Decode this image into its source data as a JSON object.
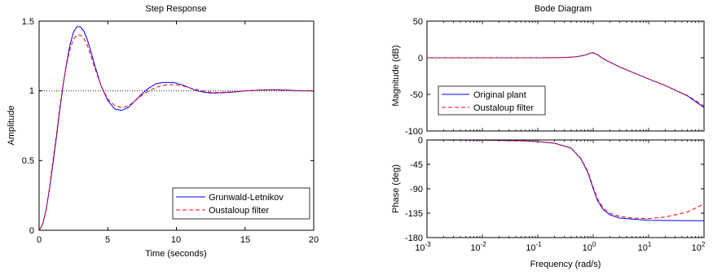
{
  "chart_data": [
    {
      "type": "line",
      "title": "Step Response",
      "xlabel": "Time (seconds)",
      "ylabel": "Amplitude",
      "xlim": [
        0,
        20
      ],
      "ylim": [
        0,
        1.5
      ],
      "xticks": [
        "0",
        "5",
        "10",
        "15",
        "20"
      ],
      "yticks": [
        "0",
        "0.5",
        "1",
        "1.5"
      ],
      "legend_position": "bottom-right",
      "reference_line": {
        "y": 1,
        "style": "dotted",
        "color": "#000000"
      },
      "series": [
        {
          "name": "Grunwald-Letnikov",
          "color": "#0000ff",
          "style": "solid",
          "x": [
            0,
            0.25,
            0.5,
            0.75,
            1,
            1.25,
            1.5,
            1.75,
            2,
            2.25,
            2.5,
            2.75,
            3,
            3.25,
            3.5,
            3.75,
            4,
            4.5,
            5,
            5.5,
            6,
            6.25,
            6.5,
            7,
            7.5,
            8,
            8.5,
            9,
            9.5,
            9.75,
            10,
            10.5,
            11,
            11.5,
            12,
            12.5,
            13,
            14,
            15,
            16,
            17,
            18,
            19,
            20
          ],
          "y": [
            0,
            0.04,
            0.14,
            0.29,
            0.47,
            0.66,
            0.86,
            1.04,
            1.2,
            1.33,
            1.42,
            1.46,
            1.46,
            1.43,
            1.37,
            1.29,
            1.2,
            1.04,
            0.93,
            0.87,
            0.86,
            0.87,
            0.88,
            0.93,
            0.98,
            1.02,
            1.05,
            1.06,
            1.06,
            1.06,
            1.055,
            1.04,
            1.02,
            1.0,
            0.99,
            0.985,
            0.985,
            0.99,
            1.0,
            1.005,
            1.008,
            1.005,
            1.001,
            1.0
          ]
        },
        {
          "name": "Oustaloup filter",
          "color": "#ff0000",
          "style": "dashed",
          "x": [
            0,
            0.25,
            0.5,
            0.75,
            1,
            1.25,
            1.5,
            1.75,
            2,
            2.25,
            2.5,
            2.75,
            3,
            3.25,
            3.5,
            3.75,
            4,
            4.5,
            5,
            5.5,
            6,
            6.5,
            7,
            7.5,
            8,
            8.5,
            9,
            9.5,
            10,
            10.5,
            11,
            11.5,
            12,
            12.5,
            13,
            14,
            15,
            16,
            17,
            18,
            19,
            20
          ],
          "y": [
            0,
            0.04,
            0.14,
            0.3,
            0.49,
            0.68,
            0.88,
            1.05,
            1.19,
            1.3,
            1.37,
            1.4,
            1.4,
            1.38,
            1.33,
            1.26,
            1.18,
            1.04,
            0.94,
            0.895,
            0.88,
            0.89,
            0.93,
            0.97,
            1.0,
            1.025,
            1.04,
            1.045,
            1.043,
            1.035,
            1.02,
            1.008,
            0.998,
            0.99,
            0.988,
            0.993,
            1.0,
            1.005,
            1.006,
            1.003,
            1.0,
            1.0
          ]
        }
      ]
    },
    {
      "type": "line",
      "title": "Bode Diagram",
      "xlabel": "Frequency  (rad/s)",
      "xscale": "log",
      "xlim": [
        0.001,
        100
      ],
      "xtick_bases": [
        "10",
        "10",
        "10",
        "10",
        "10",
        "10"
      ],
      "xtick_exponents": [
        "-3",
        "-2",
        "-1",
        "0",
        "1",
        "2"
      ],
      "legend_position": "bottom-left of magnitude panel",
      "panels": [
        {
          "name": "magnitude",
          "ylabel": "Magnitude (dB)",
          "ylim": [
            -100,
            50
          ],
          "yticks": [
            "50",
            "0",
            "-50",
            "-100"
          ],
          "series": [
            {
              "name": "Original plant",
              "color": "#0000ff",
              "style": "solid",
              "x": [
                0.001,
                0.01,
                0.1,
                0.3,
                0.5,
                0.7,
                0.9,
                1.0,
                1.2,
                1.5,
                2,
                3,
                5,
                10,
                20,
                50,
                100
              ],
              "y": [
                0,
                0,
                0,
                0.3,
                1.5,
                3.5,
                6.5,
                7,
                4,
                -1,
                -6,
                -12.5,
                -19.5,
                -29,
                -38,
                -52,
                -68
              ]
            },
            {
              "name": "Oustaloup filter",
              "color": "#ff0000",
              "style": "dashed",
              "x": [
                0.001,
                0.01,
                0.1,
                0.3,
                0.5,
                0.7,
                0.9,
                1.0,
                1.2,
                1.5,
                2,
                3,
                5,
                10,
                20,
                50,
                100
              ],
              "y": [
                0,
                0,
                0,
                0.3,
                1.5,
                3.5,
                6.3,
                6.7,
                4,
                -1,
                -6,
                -12.5,
                -19.5,
                -29,
                -38,
                -51.5,
                -66
              ]
            }
          ]
        },
        {
          "name": "phase",
          "ylabel": "Phase (deg)",
          "ylim": [
            -180,
            0
          ],
          "yticks": [
            "0",
            "-45",
            "-90",
            "-135",
            "-180"
          ],
          "series": [
            {
              "name": "Original plant",
              "color": "#0000ff",
              "style": "solid",
              "x": [
                0.001,
                0.01,
                0.05,
                0.1,
                0.2,
                0.4,
                0.6,
                0.8,
                1.0,
                1.2,
                1.5,
                2,
                3,
                5,
                10,
                20,
                50,
                100
              ],
              "y": [
                0,
                -0.5,
                -1.5,
                -3,
                -6,
                -15,
                -35,
                -60,
                -90,
                -112,
                -128,
                -138,
                -144,
                -146,
                -148,
                -148.5,
                -149,
                -149
              ]
            },
            {
              "name": "Oustaloup filter",
              "color": "#ff0000",
              "style": "dashed",
              "x": [
                0.001,
                0.01,
                0.05,
                0.1,
                0.2,
                0.4,
                0.6,
                0.8,
                1.0,
                1.2,
                1.5,
                2,
                3,
                5,
                10,
                20,
                50,
                100
              ],
              "y": [
                0,
                -0.5,
                -1.5,
                -3,
                -6,
                -15,
                -34,
                -58,
                -87,
                -109,
                -125,
                -135,
                -141,
                -144,
                -145,
                -142,
                -133,
                -118
              ]
            }
          ]
        }
      ]
    }
  ]
}
